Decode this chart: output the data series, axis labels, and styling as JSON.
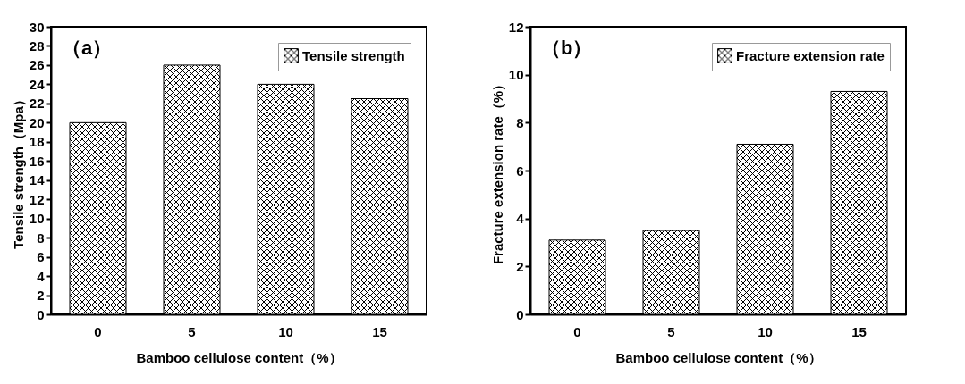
{
  "chart_data": [
    {
      "type": "bar",
      "categories": [
        "0",
        "5",
        "10",
        "15"
      ],
      "xlabel": "Bamboo cellulose content（%）",
      "ylabel": "Tensile strength（Mpa）",
      "annotations": [
        "（a）"
      ],
      "ylim": [
        0,
        30
      ],
      "yticks": [
        0,
        2,
        4,
        6,
        8,
        10,
        12,
        14,
        16,
        18,
        20,
        22,
        24,
        26,
        28,
        30
      ],
      "legend": "top right",
      "series": [
        {
          "name": "Tensile strength",
          "color": "#000000",
          "values": [
            20,
            26,
            24,
            22.5
          ]
        }
      ]
    },
    {
      "type": "bar",
      "categories": [
        "0",
        "5",
        "10",
        "15"
      ],
      "xlabel": "Bamboo cellulose content（%）",
      "ylabel": "Fracture extension rate（%）",
      "annotations": [
        "（b）"
      ],
      "ylim": [
        0,
        12
      ],
      "yticks": [
        0,
        2,
        4,
        6,
        8,
        10,
        12
      ],
      "legend": "top right",
      "series": [
        {
          "name": "Fracture extension rate",
          "color": "#000000",
          "values": [
            3.1,
            3.5,
            7.1,
            9.3
          ]
        }
      ]
    }
  ]
}
